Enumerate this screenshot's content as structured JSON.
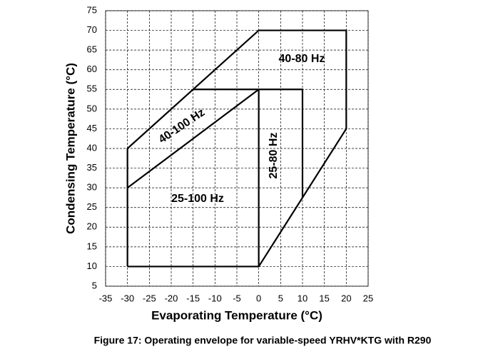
{
  "chart_data": {
    "type": "line",
    "title": "Figure 17: Operating envelope for variable-speed YRHV*KTG with R290",
    "x_label": "Evaporating Temperature (°C)",
    "y_label": "Condensing Temperature (°C)",
    "xlim": [
      -35,
      25
    ],
    "xticks": [
      -35,
      -30,
      -25,
      -20,
      -15,
      -10,
      -5,
      0,
      5,
      10,
      15,
      20,
      25
    ],
    "ylim": [
      5,
      75
    ],
    "yticks": [
      5,
      10,
      15,
      20,
      25,
      30,
      35,
      40,
      45,
      50,
      55,
      60,
      65,
      70,
      75
    ],
    "grid": true,
    "color": "#000000",
    "series": [
      {
        "x": [
          -30,
          -30,
          0,
          20,
          20,
          0,
          -30
        ],
        "values": [
          10,
          40,
          70,
          70,
          45,
          10,
          10
        ]
      },
      {
        "x": [
          -15,
          10,
          10
        ],
        "values": [
          55,
          55,
          27.5
        ]
      },
      {
        "x": [
          0,
          0
        ],
        "values": [
          55,
          10
        ]
      },
      {
        "x": [
          -30,
          0
        ],
        "values": [
          30,
          55
        ]
      }
    ],
    "annotations": [
      "40-80 Hz",
      "40-100 Hz",
      "25-80 Hz",
      "25-100 Hz"
    ]
  }
}
